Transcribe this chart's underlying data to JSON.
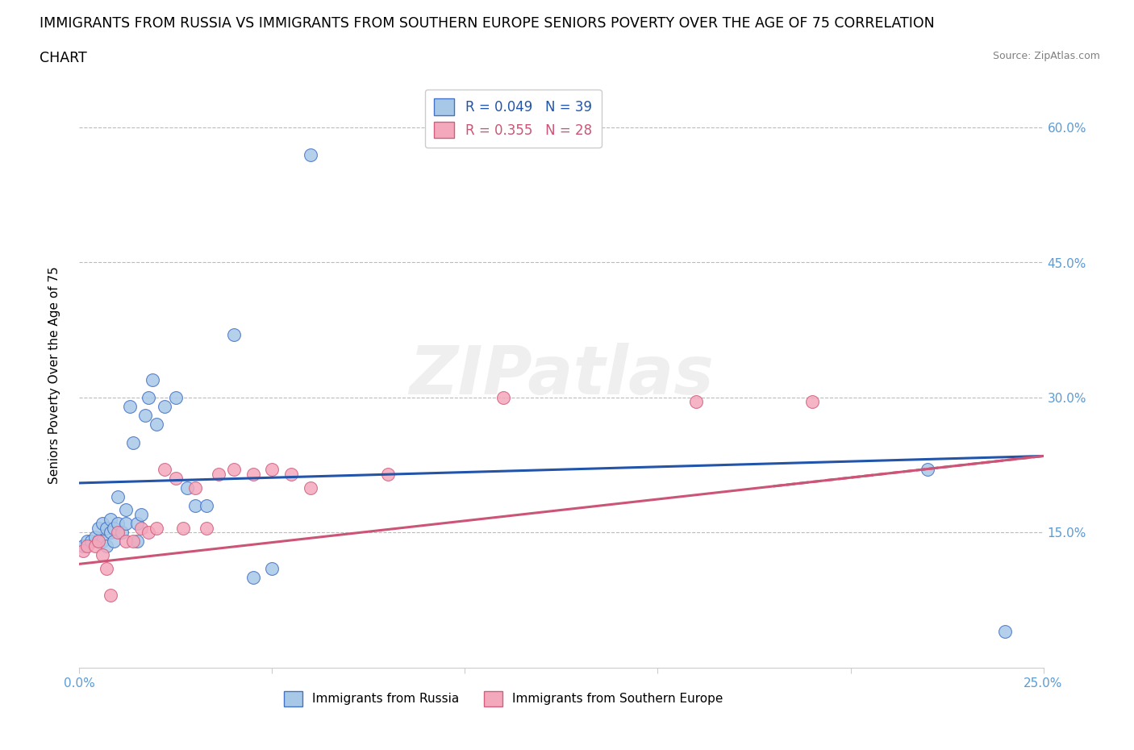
{
  "title_line1": "IMMIGRANTS FROM RUSSIA VS IMMIGRANTS FROM SOUTHERN EUROPE SENIORS POVERTY OVER THE AGE OF 75 CORRELATION",
  "title_line2": "CHART",
  "source": "Source: ZipAtlas.com",
  "ylabel": "Seniors Poverty Over the Age of 75",
  "xlim": [
    0.0,
    0.25
  ],
  "ylim": [
    0.0,
    0.65
  ],
  "xticks": [
    0.0,
    0.05,
    0.1,
    0.15,
    0.2,
    0.25
  ],
  "yticks": [
    0.15,
    0.3,
    0.45,
    0.6
  ],
  "ytick_labels": [
    "15.0%",
    "30.0%",
    "45.0%",
    "60.0%"
  ],
  "xtick_labels": [
    "0.0%",
    "",
    "",
    "",
    "",
    "25.0%"
  ],
  "russia_R": 0.049,
  "russia_N": 39,
  "seurope_R": 0.355,
  "seurope_N": 28,
  "russia_color": "#a8c8e8",
  "seurope_color": "#f4a8bc",
  "russia_edge_color": "#4472c4",
  "seurope_edge_color": "#d06080",
  "russia_line_color": "#2255aa",
  "seurope_line_color": "#cc5577",
  "watermark_text": "ZIPatlas",
  "russia_line_start_y": 0.205,
  "russia_line_end_y": 0.235,
  "seurope_line_start_y": 0.115,
  "seurope_line_end_y": 0.235,
  "russia_scatter_x": [
    0.001,
    0.002,
    0.003,
    0.004,
    0.005,
    0.005,
    0.006,
    0.006,
    0.007,
    0.007,
    0.008,
    0.008,
    0.009,
    0.009,
    0.01,
    0.01,
    0.011,
    0.012,
    0.012,
    0.013,
    0.014,
    0.015,
    0.015,
    0.016,
    0.017,
    0.018,
    0.019,
    0.02,
    0.022,
    0.025,
    0.028,
    0.03,
    0.033,
    0.04,
    0.045,
    0.05,
    0.06,
    0.22,
    0.24
  ],
  "russia_scatter_y": [
    0.135,
    0.14,
    0.14,
    0.145,
    0.14,
    0.155,
    0.14,
    0.16,
    0.135,
    0.155,
    0.15,
    0.165,
    0.14,
    0.155,
    0.16,
    0.19,
    0.15,
    0.16,
    0.175,
    0.29,
    0.25,
    0.14,
    0.16,
    0.17,
    0.28,
    0.3,
    0.32,
    0.27,
    0.29,
    0.3,
    0.2,
    0.18,
    0.18,
    0.37,
    0.1,
    0.11,
    0.57,
    0.22,
    0.04
  ],
  "seurope_scatter_x": [
    0.001,
    0.002,
    0.004,
    0.005,
    0.006,
    0.007,
    0.008,
    0.01,
    0.012,
    0.014,
    0.016,
    0.018,
    0.02,
    0.022,
    0.025,
    0.027,
    0.03,
    0.033,
    0.036,
    0.04,
    0.045,
    0.05,
    0.055,
    0.06,
    0.08,
    0.11,
    0.16,
    0.19
  ],
  "seurope_scatter_y": [
    0.13,
    0.135,
    0.135,
    0.14,
    0.125,
    0.11,
    0.08,
    0.15,
    0.14,
    0.14,
    0.155,
    0.15,
    0.155,
    0.22,
    0.21,
    0.155,
    0.2,
    0.155,
    0.215,
    0.22,
    0.215,
    0.22,
    0.215,
    0.2,
    0.215,
    0.3,
    0.295,
    0.295
  ],
  "hline_y_values": [
    0.15,
    0.3,
    0.45,
    0.6
  ],
  "title_fontsize": 12.5,
  "legend_fontsize": 12,
  "axis_color": "#5b9bd5",
  "grid_color": "#bbbbbb"
}
